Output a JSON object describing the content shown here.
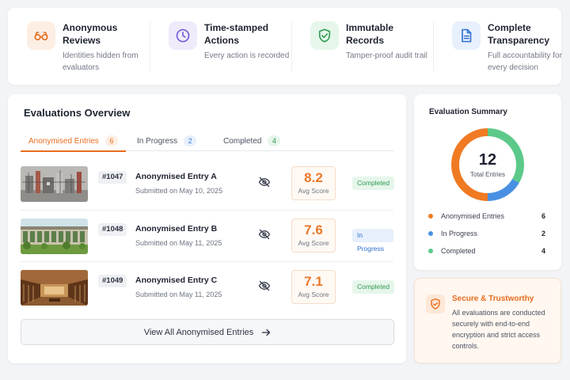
{
  "features": [
    {
      "title": "Anonymous Reviews",
      "desc": "Identities hidden from evaluators",
      "icon": "glasses-icon",
      "bg": "#fdeee3",
      "color": "#e86d1f"
    },
    {
      "title": "Time-stamped Actions",
      "desc": "Every action is recorded",
      "icon": "clock-icon",
      "bg": "#efebfb",
      "color": "#7156d8"
    },
    {
      "title": "Immutable Records",
      "desc": "Tamper-proof audit trail",
      "icon": "shield-check-icon",
      "bg": "#e6f6eb",
      "color": "#2f9a4f"
    },
    {
      "title": "Complete Transparency",
      "desc": "Full accountability for every decision",
      "icon": "document-icon",
      "bg": "#e7f0fc",
      "color": "#2f6fcf"
    }
  ],
  "overview": {
    "title": "Evaluations Overview",
    "tabs": [
      {
        "label": "Anonymised Entries",
        "count": "6"
      },
      {
        "label": "In Progress",
        "count": "2"
      },
      {
        "label": "Completed",
        "count": "4"
      }
    ],
    "entries": [
      {
        "id": "#1047",
        "name": "Anonymised Entry A",
        "date": "Submitted on May 10, 2025",
        "score": "8.2",
        "score_label": "Avg Score",
        "status": "Completed",
        "thumb": "industrial-model-thumbnail"
      },
      {
        "id": "#1048",
        "name": "Anonymised Entry B",
        "date": "Submitted on May 11, 2025",
        "score": "7.6",
        "score_label": "Avg Score",
        "status": "In Progress",
        "thumb": "green-facade-thumbnail"
      },
      {
        "id": "#1049",
        "name": "Anonymised Entry C",
        "date": "Submitted on May 11, 2025",
        "score": "7.1",
        "score_label": "Avg Score",
        "status": "Completed",
        "thumb": "library-interior-thumbnail"
      }
    ],
    "view_all": "View All Anonymised Entries"
  },
  "summary": {
    "title": "Evaluation Summary",
    "total": "12",
    "total_label": "Total Entries",
    "legend": [
      {
        "label": "Anonymised Entries",
        "count": "6",
        "color": "#f07a22"
      },
      {
        "label": "In Progress",
        "count": "2",
        "color": "#4a90e2"
      },
      {
        "label": "Completed",
        "count": "4",
        "color": "#5cc98a"
      }
    ]
  },
  "secure": {
    "title": "Secure & Trustworthy",
    "desc": "All evaluations are conducted securely with end-to-end encryption and strict access controls."
  }
}
